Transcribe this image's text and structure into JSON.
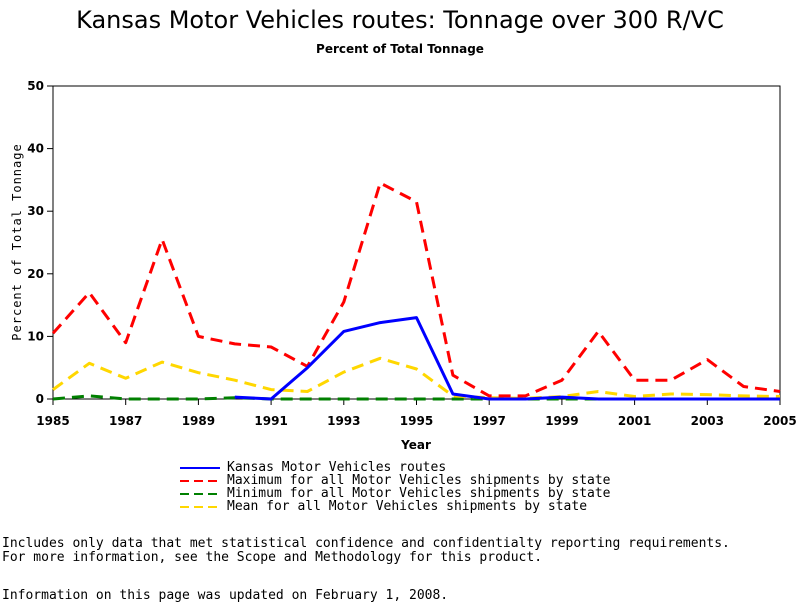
{
  "chart_data": {
    "type": "line",
    "title": "Kansas Motor Vehicles routes: Tonnage over 300 R/VC",
    "subtitle": "Percent of Total Tonnage",
    "xlabel": "Year",
    "ylabel": "Percent of Total Tonnage",
    "xlim": [
      1985,
      2005
    ],
    "ylim": [
      0,
      50
    ],
    "x_ticks": [
      1985,
      1987,
      1989,
      1991,
      1993,
      1995,
      1997,
      1999,
      2001,
      2003,
      2005
    ],
    "y_ticks": [
      0,
      10,
      20,
      30,
      40,
      50
    ],
    "x_tick_labels": [
      "1985",
      "1987",
      "1989",
      "1991",
      "1993",
      "1995",
      "1997",
      "1999",
      "2001",
      "2003",
      "2005"
    ],
    "y_tick_labels": [
      "0",
      "10",
      "20",
      "30",
      "40",
      "50"
    ],
    "grid": false,
    "legend_position": "bottom",
    "series": [
      {
        "name": "Kansas Motor Vehicles routes",
        "color": "#0000ff",
        "dash": "solid",
        "x": [
          1990,
          1991,
          1992,
          1993,
          1994,
          1995,
          1996,
          1997,
          1998,
          1999,
          2000,
          2001,
          2002,
          2003,
          2004,
          2005
        ],
        "y": [
          0.3,
          0,
          5,
          10.8,
          12.2,
          13,
          0.8,
          0,
          0,
          0.3,
          0,
          0,
          0,
          0,
          0,
          0
        ]
      },
      {
        "name": "Maximum for all Motor Vehicles shipments by state",
        "color": "#ff0000",
        "dash": "dashed",
        "x": [
          1985,
          1986,
          1987,
          1988,
          1989,
          1990,
          1991,
          1992,
          1993,
          1994,
          1995,
          1996,
          1997,
          1998,
          1999,
          2000,
          2001,
          2002,
          2003,
          2004,
          2005
        ],
        "y": [
          10.5,
          17,
          9,
          25.5,
          10,
          8.8,
          8.3,
          5.2,
          15.5,
          34.5,
          31.5,
          3.8,
          0.5,
          0.5,
          3,
          10.8,
          3,
          3,
          6.3,
          2,
          1.2
        ]
      },
      {
        "name": "Minimum for all Motor Vehicles shipments by state",
        "color": "#008000",
        "dash": "dashed",
        "x": [
          1985,
          1986,
          1987,
          1988,
          1989,
          1990,
          1991,
          1992,
          1993,
          1994,
          1995,
          1996,
          1997,
          1998,
          1999,
          2000,
          2001,
          2002,
          2003,
          2004,
          2005
        ],
        "y": [
          0,
          0.5,
          0,
          0,
          0,
          0.2,
          0,
          0,
          0,
          0,
          0,
          0,
          0,
          0,
          0,
          0,
          0,
          0,
          0,
          0,
          0
        ]
      },
      {
        "name": "Mean for all Motor Vehicles shipments by state",
        "color": "#ffd700",
        "dash": "dashed",
        "x": [
          1985,
          1986,
          1987,
          1988,
          1989,
          1990,
          1991,
          1992,
          1993,
          1994,
          1995,
          1996,
          1997,
          1998,
          1999,
          2000,
          2001,
          2002,
          2003,
          2004,
          2005
        ],
        "y": [
          1.5,
          5.7,
          3.3,
          5.9,
          4.2,
          3,
          1.5,
          1.2,
          4.3,
          6.5,
          4.8,
          0.5,
          0.2,
          0.1,
          0.4,
          1.2,
          0.4,
          0.8,
          0.7,
          0.5,
          0.4
        ]
      }
    ]
  },
  "notes": {
    "line1": "Includes only data that met statistical confidence and confidentialty reporting requirements.",
    "line2": "For more information, see the Scope and Methodology for this product."
  },
  "updated": "Information on this page was updated on February 1, 2008."
}
